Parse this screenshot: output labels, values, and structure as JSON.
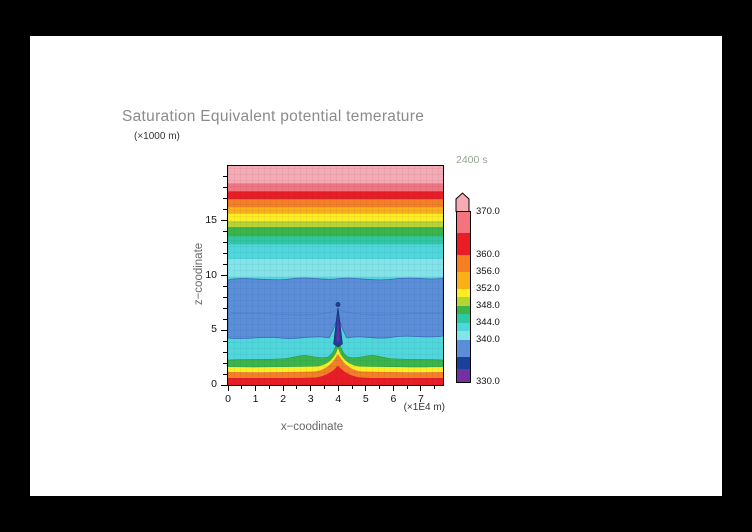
{
  "frame": {
    "bg": "#000000",
    "paper_bg": "#ffffff"
  },
  "header": {
    "title": "Saturation Equivalent potential temerature",
    "time_label": "2400 s"
  },
  "axes": {
    "x_label": "x−coodinate",
    "x_unit": "(×1E4 m)",
    "y_label": "z−coodinate",
    "y_unit": "(×1000 m)"
  },
  "chart_data": {
    "type": "heatmap",
    "title": "Saturation Equivalent potential temerature",
    "time": "2400 s",
    "xlabel": "x−coodinate",
    "x_unit_note": "×1E4 m",
    "ylabel": "z−coodinate",
    "y_unit_note": "×1000 m",
    "xlim": [
      0,
      7.8
    ],
    "ylim": [
      0,
      20
    ],
    "x_ticks": [
      0,
      1,
      2,
      3,
      4,
      5,
      6,
      7
    ],
    "y_ticks": [
      0,
      5,
      10,
      15
    ],
    "grid": true,
    "legend_position": "right-colorbar",
    "palette": {
      "pink": "#f6aab4",
      "salmon": "#f3747f",
      "red": "#ec1c24",
      "orange": "#f57f22",
      "amber": "#fbb018",
      "yellow": "#fdee22",
      "yellowgreen": "#b8d432",
      "green": "#3bb54a",
      "teal": "#2fc8a5",
      "cyan": "#4fd8dc",
      "palecyan": "#82e4e9",
      "blue": "#5b8ed8",
      "navy": "#1d3f9c",
      "purple": "#7230a4",
      "contour_blue": "#3a6cc0",
      "contour_mid": "#4d7fd0"
    },
    "colorbar": {
      "range": [
        330,
        370
      ],
      "over_color": "#f6aab4",
      "labels": [
        370.0,
        360.0,
        356.0,
        352.0,
        348.0,
        344.0,
        340.0,
        330.0
      ],
      "segments": [
        {
          "from": 365,
          "to": 370,
          "color": "#f3747f"
        },
        {
          "from": 360,
          "to": 365,
          "color": "#ec1c24"
        },
        {
          "from": 356,
          "to": 360,
          "color": "#f57f22"
        },
        {
          "from": 352,
          "to": 356,
          "color": "#fbb018"
        },
        {
          "from": 350,
          "to": 352,
          "color": "#fdee22"
        },
        {
          "from": 348,
          "to": 350,
          "color": "#b8d432"
        },
        {
          "from": 346,
          "to": 348,
          "color": "#3bb54a"
        },
        {
          "from": 344,
          "to": 346,
          "color": "#2fc8a5"
        },
        {
          "from": 342,
          "to": 344,
          "color": "#4fd8dc"
        },
        {
          "from": 340,
          "to": 342,
          "color": "#82e4e9"
        },
        {
          "from": 336,
          "to": 340,
          "color": "#5b8ed8"
        },
        {
          "from": 333,
          "to": 336,
          "color": "#1d3f9c"
        },
        {
          "from": 330,
          "to": 333,
          "color": "#7230a4"
        }
      ]
    },
    "bands": [
      {
        "z_from": 18.4,
        "z_to": 20.0,
        "level": "over 370",
        "color_key": "pink"
      },
      {
        "z_from": 17.7,
        "z_to": 18.4,
        "level": "365-370",
        "color_key": "salmon"
      },
      {
        "z_from": 17.0,
        "z_to": 17.7,
        "level": "360-365",
        "color_key": "red"
      },
      {
        "z_from": 16.3,
        "z_to": 17.0,
        "level": "356-360",
        "color_key": "orange"
      },
      {
        "z_from": 15.6,
        "z_to": 16.3,
        "level": "352-356",
        "color_key": "amber"
      },
      {
        "z_from": 15.0,
        "z_to": 15.6,
        "level": "350-352",
        "color_key": "yellow"
      },
      {
        "z_from": 14.4,
        "z_to": 15.0,
        "level": "348-350",
        "color_key": "yellowgreen"
      },
      {
        "z_from": 13.6,
        "z_to": 14.4,
        "level": "346-348",
        "color_key": "green"
      },
      {
        "z_from": 12.9,
        "z_to": 13.6,
        "level": "344-346",
        "color_key": "teal"
      },
      {
        "z_from": 11.5,
        "z_to": 12.9,
        "level": "342-344",
        "color_key": "cyan"
      },
      {
        "z_from": 9.8,
        "z_to": 11.5,
        "level": "340-342",
        "color_key": "palecyan"
      },
      {
        "z_from": 4.3,
        "z_to": 9.8,
        "level": "336-340",
        "color_key": "blue"
      },
      {
        "z_from": 2.3,
        "z_to": 4.3,
        "level": "342-344",
        "color_key": "cyan"
      },
      {
        "z_from": 1.6,
        "z_to": 2.3,
        "level": "346-348",
        "color_key": "green"
      },
      {
        "z_from": 1.2,
        "z_to": 1.6,
        "level": "350-352",
        "color_key": "yellow"
      },
      {
        "z_from": 0.6,
        "z_to": 1.2,
        "level": "356-360",
        "color_key": "orange"
      },
      {
        "z_from": 0.0,
        "z_to": 0.6,
        "level": "360-365",
        "color_key": "red"
      }
    ],
    "features": [
      {
        "name": "cold-anomaly-spike",
        "x": 4.0,
        "z_from": 3.4,
        "z_to": 7.2,
        "level": "330-336",
        "color_key": "navy"
      },
      {
        "name": "warm-plume-chimney",
        "x": 4.0,
        "z_from": 0.0,
        "z_to": 3.4,
        "level": "346-365",
        "color_keys": [
          "green",
          "yellow",
          "orange",
          "red"
        ]
      }
    ]
  }
}
